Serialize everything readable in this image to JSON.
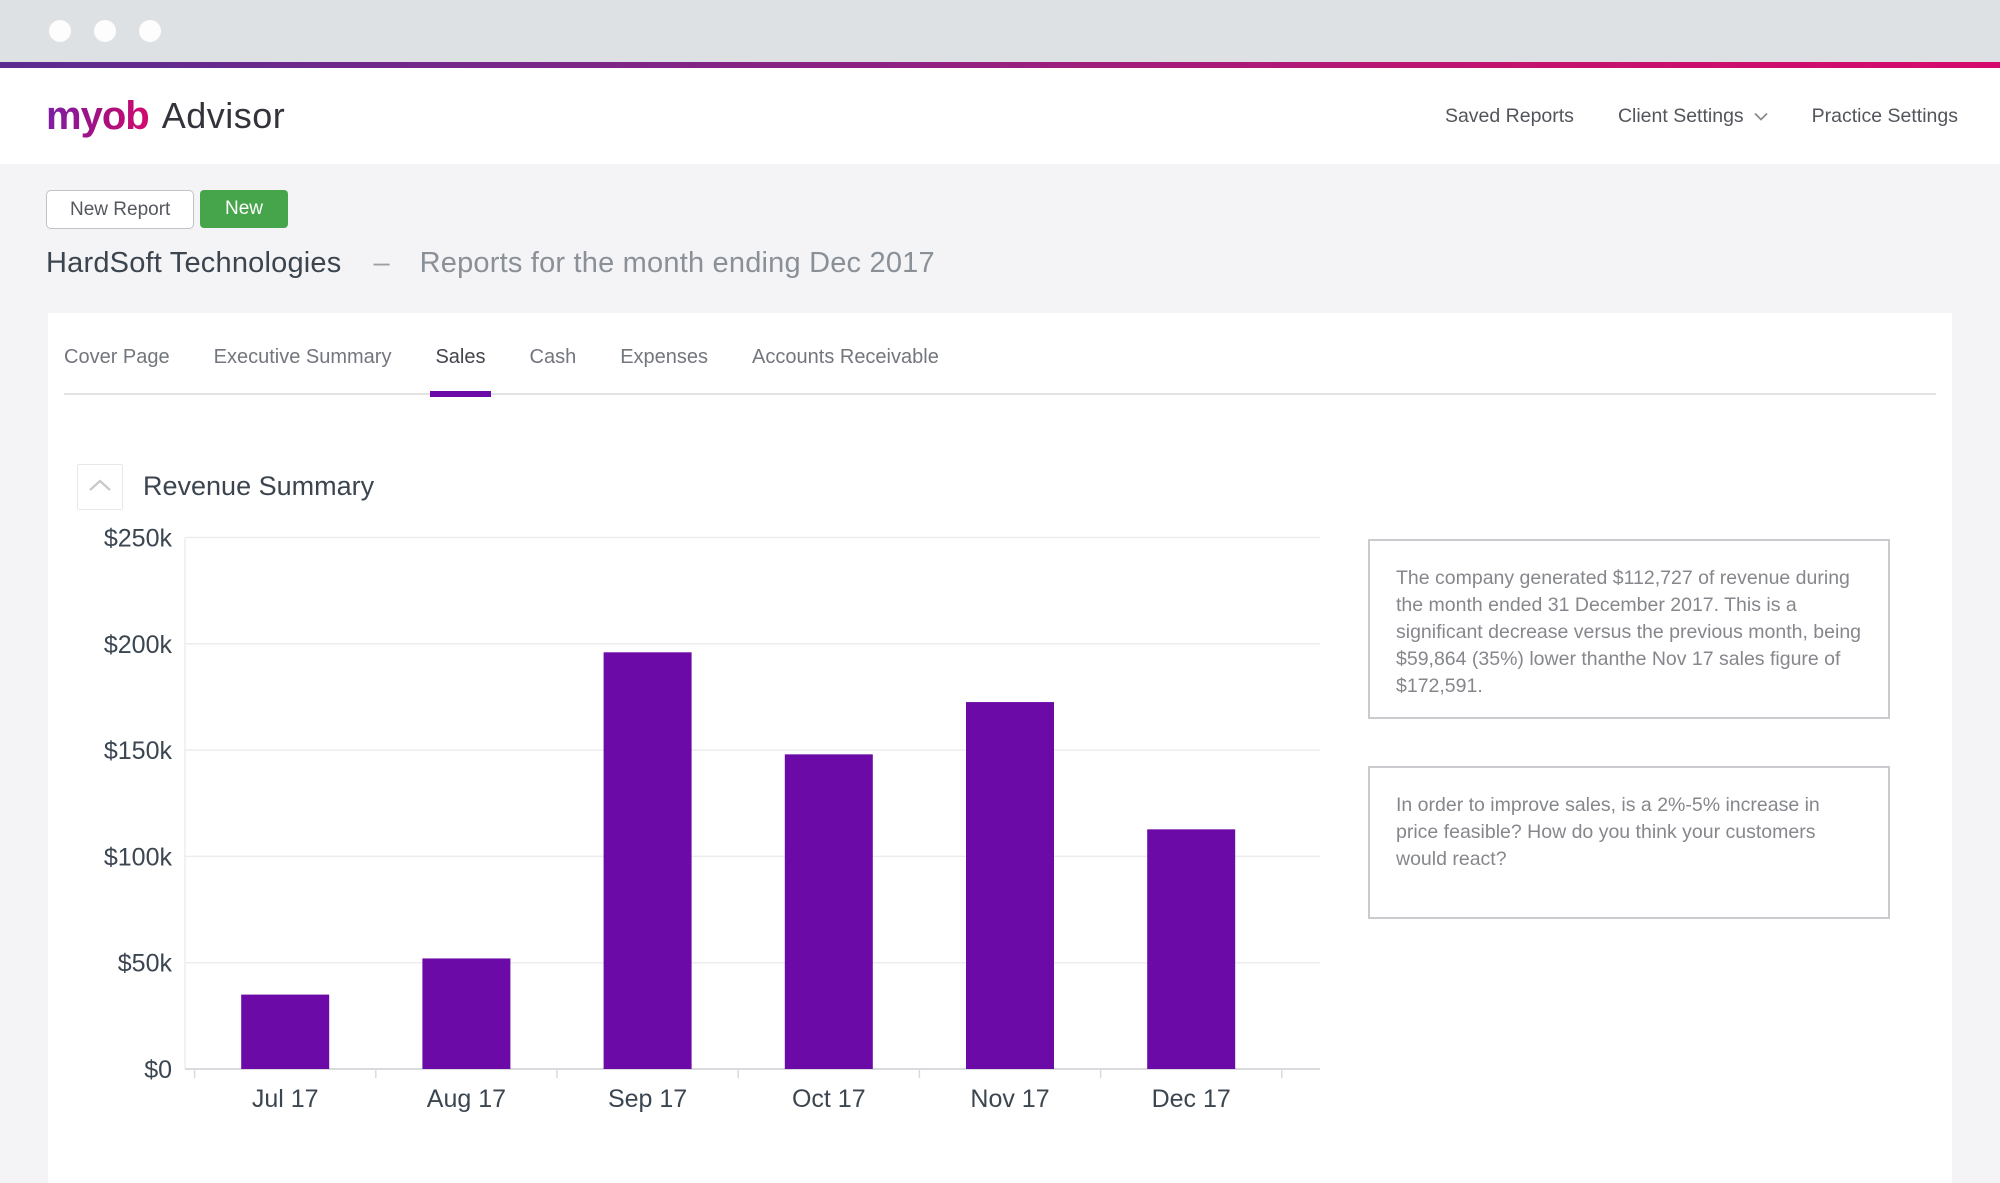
{
  "window": {
    "dots": [
      "",
      "",
      ""
    ]
  },
  "header": {
    "logo_brand": "myob",
    "logo_product": "Advisor",
    "nav": [
      {
        "label": "Saved Reports",
        "has_chevron": false
      },
      {
        "label": "Client Settings",
        "has_chevron": true
      },
      {
        "label": "Practice Settings",
        "has_chevron": false
      }
    ]
  },
  "toolbar": {
    "new_report_label": "New Report",
    "new_button_label": "New"
  },
  "page": {
    "client_name": "HardSoft Technologies",
    "separator": "–",
    "report_period": "Reports for the month ending Dec 2017"
  },
  "tabs": [
    {
      "label": "Cover Page",
      "active": false
    },
    {
      "label": "Executive Summary",
      "active": false
    },
    {
      "label": "Sales",
      "active": true
    },
    {
      "label": "Cash",
      "active": false
    },
    {
      "label": "Expenses",
      "active": false
    },
    {
      "label": "Accounts Receivable",
      "active": false
    }
  ],
  "section": {
    "title": "Revenue Summary"
  },
  "chart_data": {
    "type": "bar",
    "title": "Revenue Summary",
    "categories": [
      "Jul 17",
      "Aug 17",
      "Sep 17",
      "Oct 17",
      "Nov 17",
      "Dec 17"
    ],
    "values": [
      35000,
      52000,
      196000,
      148000,
      172591,
      112727
    ],
    "xlabel": "",
    "ylabel": "",
    "ylim": [
      0,
      250000
    ],
    "y_tick_step": 50000,
    "y_tick_labels": [
      "$0",
      "$50k",
      "$100k",
      "$150k",
      "$200k",
      "$250k"
    ],
    "grid": true,
    "legend": "none",
    "bar_color": "#6B0AA6"
  },
  "comments": [
    {
      "text": "The company generated $112,727 of revenue during the month ended 31 December 2017. This is a significant decrease versus the previous month, being $59,864 (35%) lower thanthe Nov 17 sales figure of $172,591."
    },
    {
      "text": "In order to improve sales, is a 2%-5% increase in price feasible? How do you think your customers would react?"
    }
  ],
  "colors": {
    "accent_purple": "#6B0AA6",
    "brand_gradient_start": "#5B2D90",
    "brand_gradient_end": "#D60A6E",
    "green_button": "#46A54B",
    "page_background": "#F4F4F6",
    "chrome_background": "#DEE1E4",
    "dark_text": "#3C454F",
    "muted_text": "#8A9097",
    "comment_text": "#85878C",
    "comment_border": "#C9CBCE",
    "gridline": "#EDEDEF"
  }
}
